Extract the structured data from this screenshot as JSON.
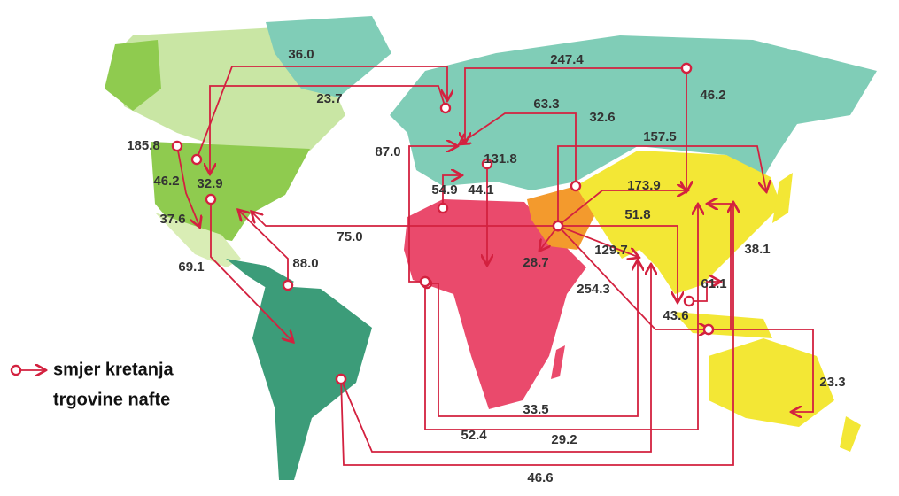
{
  "legend": [
    "smjer kretanja",
    "trgovine nafte"
  ],
  "flows": [
    "36.0",
    "23.7",
    "247.4",
    "46.2",
    "63.3",
    "32.6",
    "157.5",
    "87.0",
    "131.8",
    "185.8",
    "46.2",
    "32.9",
    "54.9",
    "44.1",
    "173.9",
    "37.6",
    "51.8",
    "75.0",
    "38.1",
    "129.7",
    "28.7",
    "88.0",
    "69.1",
    "61.1",
    "254.3",
    "43.6",
    "23.3",
    "33.5",
    "52.4",
    "29.2",
    "46.6"
  ]
}
